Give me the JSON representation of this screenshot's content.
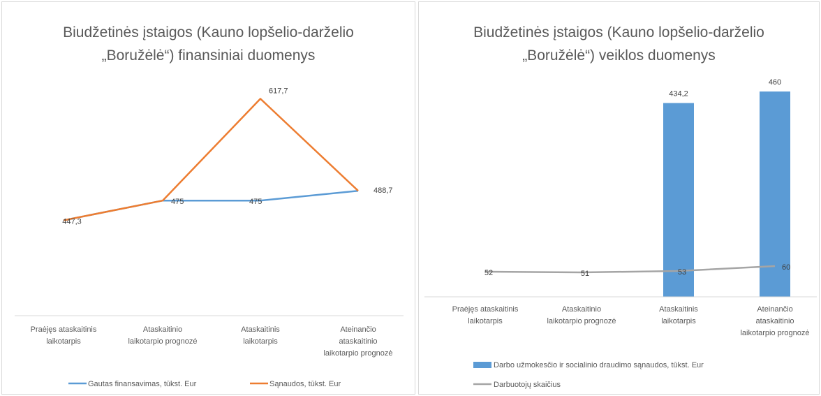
{
  "chart_data": [
    {
      "type": "line",
      "title_lines": [
        "Biudžetinės įstaigos (Kauno lopšelio-darželio",
        "„Boružėlė“) finansiniai duomenys"
      ],
      "categories": [
        [
          "Praėjęs ataskaitinis",
          "laikotarpis"
        ],
        [
          "Ataskaitinio",
          "laikotarpio prognozė"
        ],
        [
          "Ataskaitinis",
          "laikotarpis"
        ],
        [
          "Ateinančio",
          "ataskaitinio",
          "laikotarpio prognozė"
        ]
      ],
      "series": [
        {
          "name": "Gautas finansavimas, tūkst. Eur",
          "values": [
            447.3,
            475,
            475,
            488.7
          ],
          "labels": [
            "",
            "475",
            "475",
            "488,7"
          ],
          "color": "#5b9bd5"
        },
        {
          "name": "Sąnaudos, tūkst. Eur",
          "values": [
            447.3,
            475,
            617.7,
            488.7
          ],
          "labels": [
            "447,3",
            "",
            "617,7",
            ""
          ],
          "color": "#ed7d31"
        }
      ],
      "legend": "bottom",
      "grid": false
    },
    {
      "type": "bar",
      "title_lines": [
        "Biudžetinės įstaigos (Kauno lopšelio-darželio",
        "„Boružėlė“) veiklos duomenys"
      ],
      "categories": [
        [
          "Praėjęs ataskaitinis",
          "laikotarpis"
        ],
        [
          "Ataskaitinio",
          "laikotarpio prognozė"
        ],
        [
          "Ataskaitinis",
          "laikotarpis"
        ],
        [
          "Ateinančio",
          "ataskaitinio",
          "laikotarpio prognozė"
        ]
      ],
      "series": [
        {
          "name": "Darbo užmokesčio ir socialinio draudimo sąnaudos, tūkst. Eur",
          "type": "bar",
          "values": [
            null,
            null,
            434.2,
            460
          ],
          "labels": [
            "",
            "",
            "434,2",
            "460"
          ],
          "color": "#5b9bd5"
        },
        {
          "name": "Darbuotojų skaičius",
          "type": "line",
          "values": [
            52,
            51,
            53,
            60
          ],
          "labels": [
            "52",
            "51",
            "53",
            "60"
          ],
          "color": "#a5a5a5"
        }
      ],
      "legend": "bottom",
      "grid": false
    }
  ]
}
